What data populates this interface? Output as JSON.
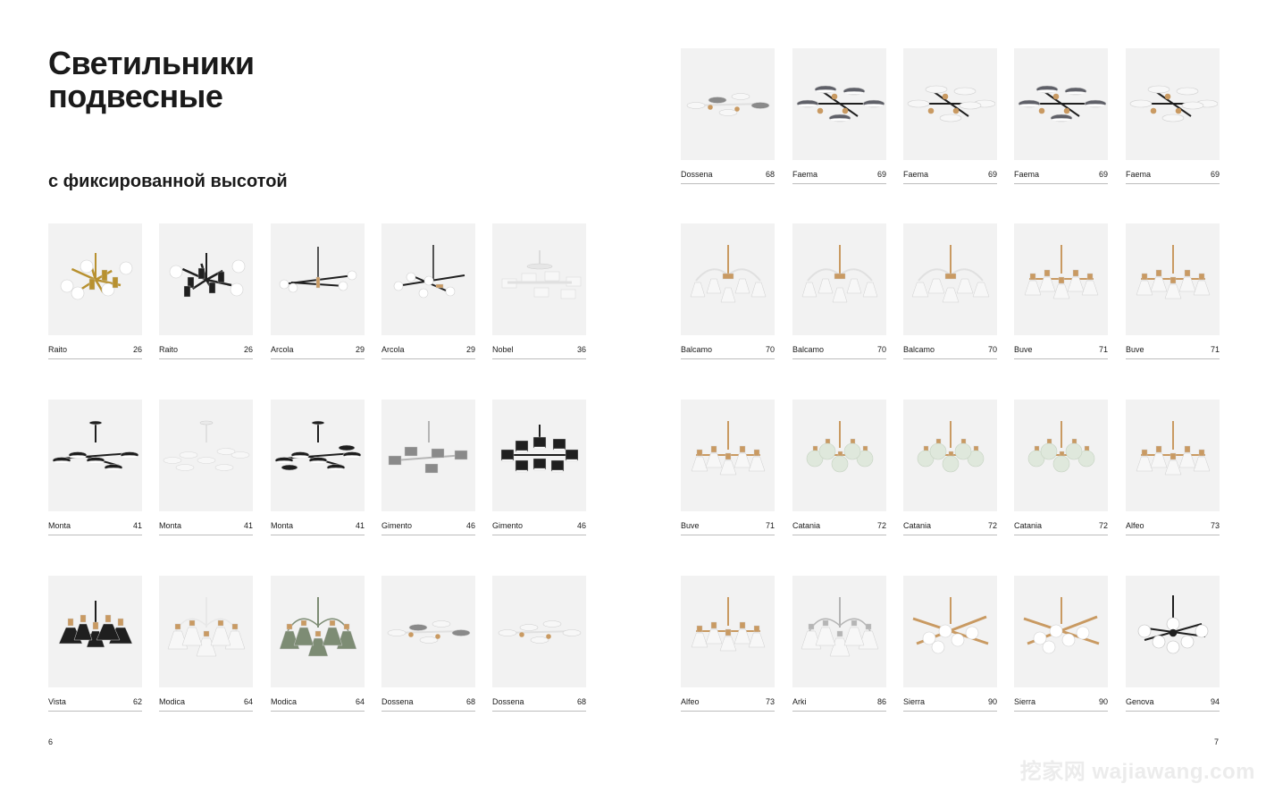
{
  "title_lines": [
    "Светильники",
    "подвесные"
  ],
  "subtitle": "с фиксированной высотой",
  "page_left": "6",
  "page_right": "7",
  "watermark": "挖家网 wajiawang.com",
  "products": [
    {
      "name": "Raito",
      "page": "26",
      "style": "gold-globes"
    },
    {
      "name": "Raito",
      "page": "26",
      "style": "black-globes"
    },
    {
      "name": "Arcola",
      "page": "29",
      "style": "black-bar-globes"
    },
    {
      "name": "Arcola",
      "page": "29",
      "style": "black-cross-globes"
    },
    {
      "name": "Nobel",
      "page": "36",
      "style": "white-cylinders"
    },
    {
      "name": "Monta",
      "page": "41",
      "style": "black-discs"
    },
    {
      "name": "Monta",
      "page": "41",
      "style": "white-discs"
    },
    {
      "name": "Monta",
      "page": "41",
      "style": "black-discs-wide"
    },
    {
      "name": "Gimento",
      "page": "46",
      "style": "grey-drums"
    },
    {
      "name": "Gimento",
      "page": "46",
      "style": "black-drums"
    },
    {
      "name": "Vista",
      "page": "62",
      "style": "black-cones"
    },
    {
      "name": "Modica",
      "page": "64",
      "style": "white-cones"
    },
    {
      "name": "Modica",
      "page": "64",
      "style": "green-cones"
    },
    {
      "name": "Dossena",
      "page": "68",
      "style": "white-rings-grey"
    },
    {
      "name": "Dossena",
      "page": "68",
      "style": "white-rings"
    },
    {
      "name": "Dossena",
      "page": "68",
      "style": "white-rings-grey"
    },
    {
      "name": "Faema",
      "page": "69",
      "style": "grey-rings-wood"
    },
    {
      "name": "Faema",
      "page": "69",
      "style": "white-rings-wood"
    },
    {
      "name": "Faema",
      "page": "69",
      "style": "grey-rings-wood"
    },
    {
      "name": "Faema",
      "page": "69",
      "style": "white-rings-wood"
    },
    {
      "name": "Balcamo",
      "page": "70",
      "style": "white-bells-wood"
    },
    {
      "name": "Balcamo",
      "page": "70",
      "style": "white-bells-wood"
    },
    {
      "name": "Balcamo",
      "page": "70",
      "style": "white-bells-wood-big"
    },
    {
      "name": "Buve",
      "page": "71",
      "style": "white-cones-wood"
    },
    {
      "name": "Buve",
      "page": "71",
      "style": "white-cones-wood"
    },
    {
      "name": "Buve",
      "page": "71",
      "style": "white-cones-wood"
    },
    {
      "name": "Catania",
      "page": "72",
      "style": "green-globes-wood"
    },
    {
      "name": "Catania",
      "page": "72",
      "style": "green-globes-wood"
    },
    {
      "name": "Catania",
      "page": "72",
      "style": "green-globes-wood"
    },
    {
      "name": "Alfeo",
      "page": "73",
      "style": "white-cones-wood"
    },
    {
      "name": "Alfeo",
      "page": "73",
      "style": "white-cones-wood"
    },
    {
      "name": "Arki",
      "page": "86",
      "style": "white-cones-chrome"
    },
    {
      "name": "Sierra",
      "page": "90",
      "style": "wood-sticks-globes"
    },
    {
      "name": "Sierra",
      "page": "90",
      "style": "wood-sticks-globes"
    },
    {
      "name": "Genova",
      "page": "94",
      "style": "black-globes-center"
    }
  ]
}
